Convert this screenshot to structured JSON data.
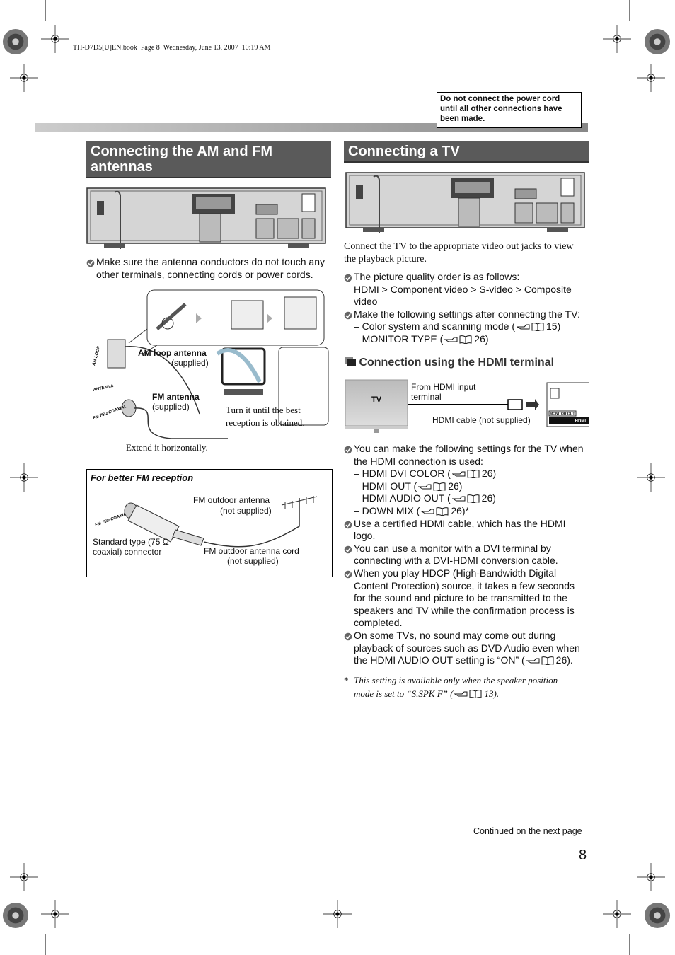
{
  "header": {
    "file_info": "TH-D7D5[U]EN.book  Page 8  Wednesday, June 13, 2007  10:19 AM"
  },
  "notice": "Do not connect the power cord until all other connections have been made.",
  "antennas": {
    "title": "Connecting the AM and FM antennas",
    "note": "Make sure the antenna conductors do not touch any other terminals, connecting cords or power cords.",
    "diagram": {
      "am_terminal": "AM LOOP",
      "antenna_label": "ANTENNA",
      "fm_terminal": "FM 75Ω COAXIAL",
      "am_antenna": "AM loop antenna",
      "am_supplied": "(supplied)",
      "fm_antenna": "FM antenna",
      "fm_supplied": "(supplied)",
      "turn_note": "Turn it until the best reception is obtained.",
      "extend_note": "Extend it horizontally."
    },
    "fm_reception": {
      "title": "For better FM reception",
      "fm_terminal": "FM 75Ω COAXIAL",
      "outdoor_antenna": "FM outdoor antenna",
      "outdoor_antenna_supplied": "(not supplied)",
      "connector": "Standard type (75 Ω coaxial) connector",
      "cord": "FM outdoor antenna cord",
      "cord_supplied": "(not supplied)"
    }
  },
  "tv": {
    "title": "Connecting a TV",
    "intro": "Connect the TV to the appropriate video out jacks to view the playback picture.",
    "bullets": [
      {
        "text": "The picture quality order is as follows:",
        "subitems": [
          {
            "text": "HDMI > Component video > S-video > Composite video"
          }
        ]
      },
      {
        "text": "Make the following settings after connecting the TV:",
        "subitems": [
          {
            "text": "– Color system and scanning mode (",
            "ref": "15)"
          },
          {
            "text": "– MONITOR TYPE (",
            "ref": "26)"
          }
        ]
      }
    ],
    "hdmi": {
      "heading": "Connection using the HDMI terminal",
      "tv": "TV",
      "from": "From HDMI input terminal",
      "cable": "HDMI cable (not supplied)",
      "monitor_out": "MONITOR OUT",
      "hdmi": "HDMI",
      "bullets": [
        {
          "text": "You can make the following settings for the TV when the HDMI connection is used:",
          "subitems": [
            {
              "text": "– HDMI DVI COLOR (",
              "ref": "26)"
            },
            {
              "text": "– HDMI OUT (",
              "ref": "26)"
            },
            {
              "text": "– HDMI AUDIO OUT (",
              "ref": "26)"
            },
            {
              "text": "– DOWN MIX (",
              "ref": "26)*"
            }
          ]
        },
        {
          "text": "Use a certified HDMI cable, which has the HDMI logo."
        },
        {
          "text": "You can use a monitor with a DVI terminal by connecting with a DVI-HDMI conversion cable."
        },
        {
          "text": "When you play HDCP (High-Bandwidth Digital Content Protection) source, it takes a few seconds for the sound and picture to be transmitted to the speakers and TV while the confirmation process is completed."
        },
        {
          "text": "On some TVs, no sound may come out during playback of sources such as DVD Audio even when the HDMI AUDIO OUT setting is “ON” (",
          "ref": "26)."
        }
      ]
    },
    "footnote": {
      "mark": "*",
      "text": "This setting is available only when the speaker position mode is set to “S.SPK F” (",
      "ref": "13)."
    }
  },
  "footer": {
    "continued": "Continued on the next page",
    "page_number": "8"
  }
}
